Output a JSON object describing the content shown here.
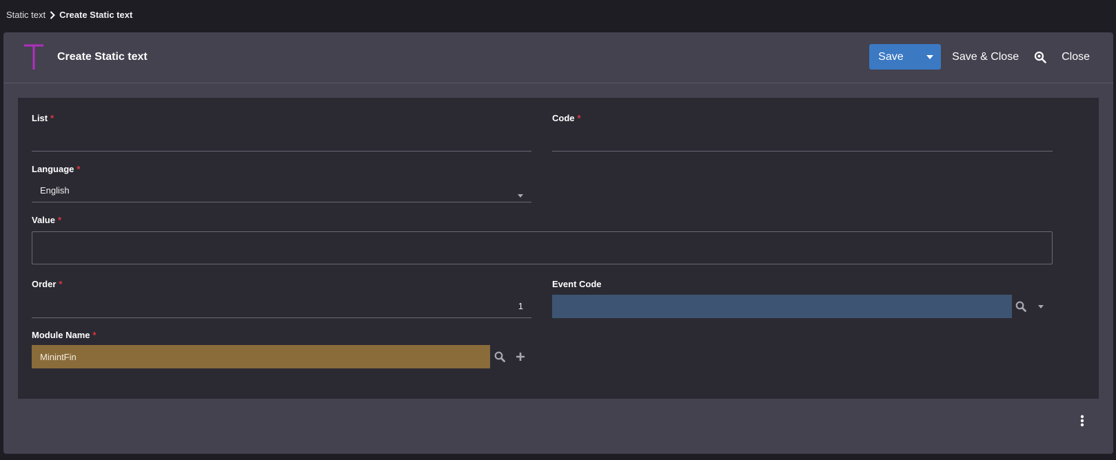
{
  "breadcrumb": {
    "parent": "Static text",
    "current": "Create Static text"
  },
  "header": {
    "title": "Create Static text",
    "icon": "letter-t-icon",
    "icon_color": "#b02fbf"
  },
  "actions": {
    "save_label": "Save",
    "save_close_label": "Save & Close",
    "close_label": "Close",
    "accent": "#3b79c3"
  },
  "form": {
    "required_marker": "*",
    "list": {
      "label": "List",
      "value": ""
    },
    "code": {
      "label": "Code",
      "value": ""
    },
    "language": {
      "label": "Language",
      "value": "English"
    },
    "value": {
      "label": "Value",
      "value": ""
    },
    "order": {
      "label": "Order",
      "value": "1"
    },
    "event_code": {
      "label": "Event Code",
      "value": "",
      "color": "#3d5573"
    },
    "module_name": {
      "label": "Module Name",
      "value": "MinintFin",
      "color": "#8a6c3b"
    }
  }
}
